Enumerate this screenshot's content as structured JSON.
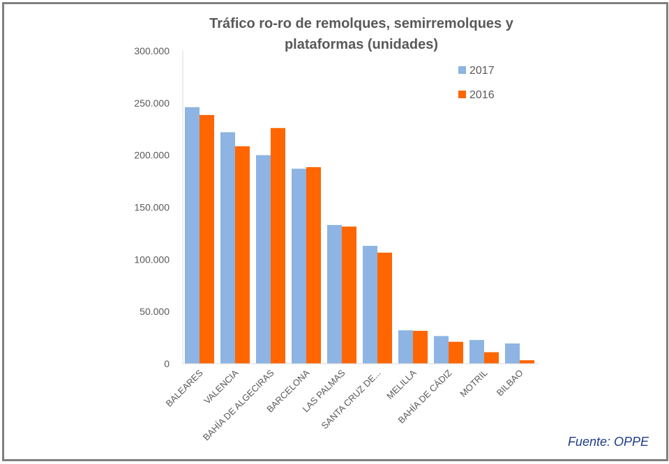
{
  "chart_data": {
    "type": "bar",
    "title": "Tráfico ro-ro de remolques, semirremolques y plataformas (unidades)",
    "title_lines": [
      "Tráfico ro-ro de remolques, semirremolques y",
      "plataformas (unidades)"
    ],
    "categories": [
      "BALEARES",
      "VALENCIA",
      "BAHÍA DE ALGECIRAS",
      "BARCELONA",
      "LAS PALMAS",
      "SANTA CRUZ DE...",
      "MELILLA",
      "BAHÍA DE CÁDIZ",
      "MOTRIL",
      "BILBAO"
    ],
    "series": [
      {
        "name": "2017",
        "color": "#8db4e2",
        "values": [
          246000,
          222000,
          200000,
          187000,
          133000,
          113000,
          32000,
          26500,
          22700,
          19400
        ]
      },
      {
        "name": "2016",
        "color": "#ff6600",
        "values": [
          238500,
          208500,
          226000,
          188500,
          131500,
          106500,
          31500,
          21000,
          11000,
          3300
        ]
      }
    ],
    "ylim": [
      0,
      300000
    ],
    "yticks": [
      0,
      50000,
      100000,
      150000,
      200000,
      250000,
      300000
    ],
    "ytick_labels": [
      "0",
      "50.000",
      "100.000",
      "150.000",
      "200.000",
      "250.000",
      "300.000"
    ],
    "grid": false,
    "legend": "top-right",
    "xlabel": "",
    "ylabel": ""
  },
  "source": "Fuente: OPPE"
}
